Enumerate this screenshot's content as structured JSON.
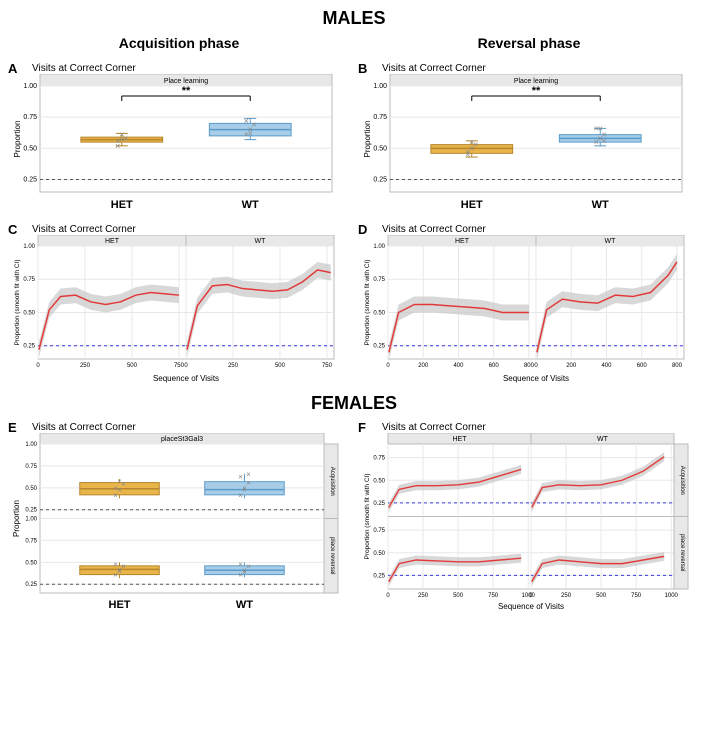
{
  "sections": {
    "males_title": "MALES",
    "females_title": "FEMALES",
    "acquisition_title": "Acquisition phase",
    "reversal_title": "Reversal phase"
  },
  "colors": {
    "het_fill": "#e8b54b",
    "het_stroke": "#b8862b",
    "wt_fill": "#a8cde8",
    "wt_stroke": "#5a9bc9",
    "line_red": "#e23a3a",
    "ci_gray": "#c8c8c8",
    "ref_dash": "#555555",
    "ref_blue": "#3a3ae2",
    "grid": "#e8e8e8",
    "panel_border": "#bbbbbb",
    "point_gray": "#888888"
  },
  "common": {
    "ylabel_box": "Proportion",
    "ylabel_line": "Proportion (smooth fit with CI)",
    "xlabel_line": "Sequence of Visits",
    "chance_level": 0.25,
    "yticks_box": [
      0.25,
      0.5,
      0.75,
      1.0
    ],
    "xcats": [
      "HET",
      "WT"
    ]
  },
  "panelA": {
    "label": "A",
    "title": "Visits at Correct Corner",
    "strip": "Place learning",
    "sig": "**",
    "het": {
      "q1": 0.55,
      "med": 0.57,
      "q3": 0.59,
      "lo": 0.52,
      "hi": 0.62,
      "pts": [
        0.56,
        0.57,
        0.58,
        0.52,
        0.61
      ]
    },
    "wt": {
      "q1": 0.6,
      "med": 0.65,
      "q3": 0.7,
      "lo": 0.57,
      "hi": 0.74,
      "pts": [
        0.61,
        0.65,
        0.69,
        0.72,
        0.62
      ]
    }
  },
  "panelB": {
    "label": "B",
    "title": "Visits at Correct Corner",
    "strip": "Place learning",
    "sig": "**",
    "het": {
      "q1": 0.46,
      "med": 0.5,
      "q3": 0.53,
      "lo": 0.43,
      "hi": 0.56,
      "pts": [
        0.47,
        0.5,
        0.53,
        0.45,
        0.55
      ]
    },
    "wt": {
      "q1": 0.55,
      "med": 0.58,
      "q3": 0.61,
      "lo": 0.52,
      "hi": 0.66,
      "pts": [
        0.55,
        0.58,
        0.61,
        0.66,
        0.66,
        0.56
      ]
    }
  },
  "panelC": {
    "label": "C",
    "title": "Visits at Correct Corner",
    "strips": [
      "HET",
      "WT"
    ],
    "xticks": [
      0,
      250,
      500,
      750
    ],
    "yticks": [
      0.25,
      0.5,
      0.75,
      1.0
    ],
    "het_line": [
      [
        5,
        0.22
      ],
      [
        60,
        0.52
      ],
      [
        120,
        0.62
      ],
      [
        200,
        0.63
      ],
      [
        280,
        0.58
      ],
      [
        360,
        0.56
      ],
      [
        440,
        0.58
      ],
      [
        520,
        0.63
      ],
      [
        600,
        0.65
      ],
      [
        680,
        0.64
      ],
      [
        750,
        0.63
      ]
    ],
    "wt_line": [
      [
        5,
        0.22
      ],
      [
        60,
        0.55
      ],
      [
        140,
        0.7
      ],
      [
        220,
        0.71
      ],
      [
        300,
        0.68
      ],
      [
        380,
        0.67
      ],
      [
        460,
        0.66
      ],
      [
        540,
        0.67
      ],
      [
        620,
        0.73
      ],
      [
        700,
        0.82
      ],
      [
        770,
        0.8
      ]
    ],
    "ci_w": 0.06
  },
  "panelD": {
    "label": "D",
    "title": "Visits at Correct Corner",
    "strips": [
      "HET",
      "WT"
    ],
    "xticks": [
      0,
      200,
      400,
      600,
      800
    ],
    "yticks": [
      0.25,
      0.5,
      0.75,
      1.0
    ],
    "het_line": [
      [
        5,
        0.2
      ],
      [
        60,
        0.5
      ],
      [
        150,
        0.56
      ],
      [
        250,
        0.56
      ],
      [
        350,
        0.55
      ],
      [
        450,
        0.54
      ],
      [
        550,
        0.53
      ],
      [
        650,
        0.5
      ],
      [
        750,
        0.5
      ],
      [
        800,
        0.5
      ]
    ],
    "wt_line": [
      [
        5,
        0.2
      ],
      [
        60,
        0.52
      ],
      [
        150,
        0.6
      ],
      [
        250,
        0.58
      ],
      [
        350,
        0.57
      ],
      [
        450,
        0.63
      ],
      [
        550,
        0.62
      ],
      [
        650,
        0.65
      ],
      [
        750,
        0.78
      ],
      [
        800,
        0.88
      ]
    ],
    "ci_w": 0.06
  },
  "panelE": {
    "label": "E",
    "title": "Visits at Correct Corner",
    "strip_top": "placeSt3Gal3",
    "rows": [
      "Acquisition",
      "place reversal"
    ],
    "acq": {
      "het": {
        "q1": 0.42,
        "med": 0.49,
        "q3": 0.56,
        "lo": 0.38,
        "hi": 0.6,
        "pts": [
          0.42,
          0.48,
          0.55,
          0.5,
          0.58
        ]
      },
      "wt": {
        "q1": 0.42,
        "med": 0.48,
        "q3": 0.57,
        "lo": 0.38,
        "hi": 0.66,
        "pts": [
          0.42,
          0.48,
          0.56,
          0.63,
          0.5,
          0.66
        ]
      }
    },
    "rev": {
      "het": {
        "q1": 0.36,
        "med": 0.42,
        "q3": 0.46,
        "lo": 0.32,
        "hi": 0.5,
        "pts": [
          0.36,
          0.42,
          0.46,
          0.48,
          0.4
        ]
      },
      "wt": {
        "q1": 0.36,
        "med": 0.41,
        "q3": 0.46,
        "lo": 0.33,
        "hi": 0.5,
        "pts": [
          0.36,
          0.41,
          0.46,
          0.48,
          0.39
        ]
      }
    }
  },
  "panelF": {
    "label": "F",
    "title": "Visits at Correct Corner",
    "strips_col": [
      "HET",
      "WT"
    ],
    "strips_row": [
      "Acquisition",
      "place reversal"
    ],
    "xticks": [
      0,
      250,
      500,
      750,
      1000
    ],
    "yticks": [
      0.25,
      0.5,
      0.75
    ],
    "acq_het": [
      [
        5,
        0.2
      ],
      [
        80,
        0.4
      ],
      [
        200,
        0.44
      ],
      [
        350,
        0.44
      ],
      [
        500,
        0.45
      ],
      [
        650,
        0.48
      ],
      [
        800,
        0.55
      ],
      [
        950,
        0.62
      ]
    ],
    "acq_wt": [
      [
        5,
        0.2
      ],
      [
        80,
        0.42
      ],
      [
        200,
        0.45
      ],
      [
        350,
        0.44
      ],
      [
        500,
        0.45
      ],
      [
        650,
        0.5
      ],
      [
        800,
        0.6
      ],
      [
        950,
        0.76
      ]
    ],
    "rev_het": [
      [
        5,
        0.18
      ],
      [
        80,
        0.38
      ],
      [
        200,
        0.42
      ],
      [
        350,
        0.41
      ],
      [
        500,
        0.4
      ],
      [
        650,
        0.4
      ],
      [
        800,
        0.42
      ],
      [
        950,
        0.44
      ]
    ],
    "rev_wt": [
      [
        5,
        0.18
      ],
      [
        80,
        0.38
      ],
      [
        200,
        0.42
      ],
      [
        350,
        0.4
      ],
      [
        500,
        0.38
      ],
      [
        650,
        0.38
      ],
      [
        800,
        0.42
      ],
      [
        950,
        0.46
      ]
    ],
    "ci_w": 0.05
  }
}
